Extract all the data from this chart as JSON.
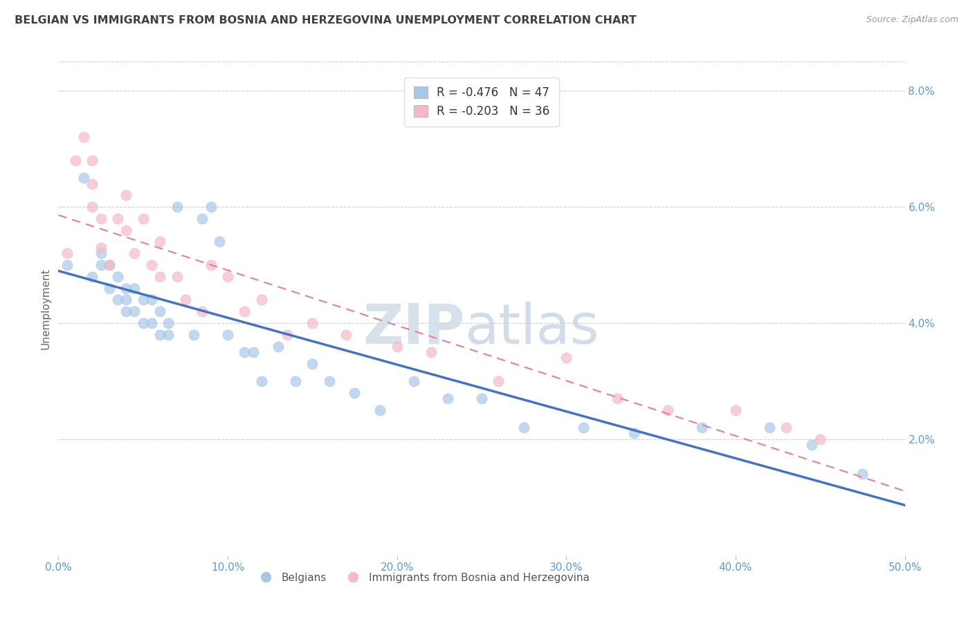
{
  "title": "BELGIAN VS IMMIGRANTS FROM BOSNIA AND HERZEGOVINA UNEMPLOYMENT CORRELATION CHART",
  "source": "Source: ZipAtlas.com",
  "ylabel": "Unemployment",
  "xlim": [
    0.0,
    0.5
  ],
  "ylim": [
    0.0,
    0.085
  ],
  "xtick_labels": [
    "0.0%",
    "10.0%",
    "20.0%",
    "30.0%",
    "40.0%",
    "50.0%"
  ],
  "xtick_vals": [
    0.0,
    0.1,
    0.2,
    0.3,
    0.4,
    0.5
  ],
  "ytick_labels": [
    "2.0%",
    "4.0%",
    "6.0%",
    "8.0%"
  ],
  "ytick_vals": [
    0.02,
    0.04,
    0.06,
    0.08
  ],
  "legend1_label": "R = -0.476   N = 47",
  "legend2_label": "R = -0.203   N = 36",
  "legend_belgians": "Belgians",
  "legend_immigrants": "Immigrants from Bosnia and Herzegovina",
  "blue_color": "#a8c8e8",
  "pink_color": "#f4b8c8",
  "blue_line_color": "#4472c4",
  "pink_line_color": "#e8808a",
  "title_color": "#404040",
  "axis_label_color": "#5b9bd5",
  "grid_color": "#c8d0dc",
  "belgians_x": [
    0.005,
    0.015,
    0.02,
    0.025,
    0.025,
    0.03,
    0.03,
    0.035,
    0.035,
    0.04,
    0.04,
    0.04,
    0.045,
    0.045,
    0.05,
    0.05,
    0.055,
    0.055,
    0.06,
    0.06,
    0.065,
    0.065,
    0.07,
    0.08,
    0.085,
    0.09,
    0.095,
    0.1,
    0.11,
    0.115,
    0.12,
    0.13,
    0.14,
    0.15,
    0.16,
    0.175,
    0.19,
    0.21,
    0.23,
    0.25,
    0.275,
    0.31,
    0.34,
    0.38,
    0.42,
    0.445,
    0.475
  ],
  "belgians_y": [
    0.05,
    0.065,
    0.048,
    0.05,
    0.052,
    0.05,
    0.046,
    0.048,
    0.044,
    0.046,
    0.044,
    0.042,
    0.046,
    0.042,
    0.044,
    0.04,
    0.044,
    0.04,
    0.042,
    0.038,
    0.04,
    0.038,
    0.06,
    0.038,
    0.058,
    0.06,
    0.054,
    0.038,
    0.035,
    0.035,
    0.03,
    0.036,
    0.03,
    0.033,
    0.03,
    0.028,
    0.025,
    0.03,
    0.027,
    0.027,
    0.022,
    0.022,
    0.021,
    0.022,
    0.022,
    0.019,
    0.014
  ],
  "immigrants_x": [
    0.005,
    0.01,
    0.015,
    0.02,
    0.02,
    0.02,
    0.025,
    0.025,
    0.03,
    0.035,
    0.04,
    0.04,
    0.045,
    0.05,
    0.055,
    0.06,
    0.06,
    0.07,
    0.075,
    0.085,
    0.09,
    0.1,
    0.11,
    0.12,
    0.135,
    0.15,
    0.17,
    0.2,
    0.22,
    0.26,
    0.3,
    0.33,
    0.36,
    0.4,
    0.43,
    0.45
  ],
  "immigrants_y": [
    0.052,
    0.068,
    0.072,
    0.06,
    0.064,
    0.068,
    0.053,
    0.058,
    0.05,
    0.058,
    0.056,
    0.062,
    0.052,
    0.058,
    0.05,
    0.048,
    0.054,
    0.048,
    0.044,
    0.042,
    0.05,
    0.048,
    0.042,
    0.044,
    0.038,
    0.04,
    0.038,
    0.036,
    0.035,
    0.03,
    0.034,
    0.027,
    0.025,
    0.025,
    0.022,
    0.02
  ]
}
